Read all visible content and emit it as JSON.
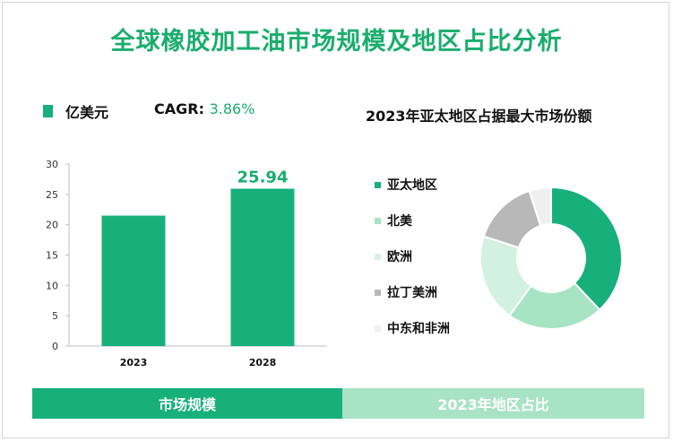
{
  "title": "全球橡胶加工油市场规模及地区占比分析",
  "bar_legend": "亿美元",
  "cagr_label": "CAGR:",
  "cagr_value": "3.86%",
  "pie_title": "2023年亚太地区占据最大市场份额",
  "bottom": {
    "left": "市场规模",
    "right": "2023年地区占比"
  },
  "colors": {
    "green": "#17b07a",
    "light_green": "#a9e3c6",
    "title": "#1aad6e"
  },
  "chart_data": [
    {
      "type": "bar",
      "categories": [
        "2023",
        "2028"
      ],
      "values": [
        21.5,
        25.94
      ],
      "value_labels": [
        "",
        "25.94"
      ],
      "ylim": [
        0,
        30
      ],
      "yticks": [
        0,
        5,
        10,
        15,
        20,
        25,
        30
      ],
      "grid": false,
      "color": "#17b07a"
    },
    {
      "type": "pie",
      "donut": true,
      "labels": [
        "亚太地区",
        "北美",
        "欧洲",
        "拉丁美洲",
        "中东和非洲"
      ],
      "values": [
        38,
        22,
        20,
        15,
        5
      ],
      "colors": [
        "#17b07a",
        "#a6e4c4",
        "#d2f1e1",
        "#b8b8b8",
        "#efefef"
      ],
      "legend_position": "left"
    }
  ]
}
